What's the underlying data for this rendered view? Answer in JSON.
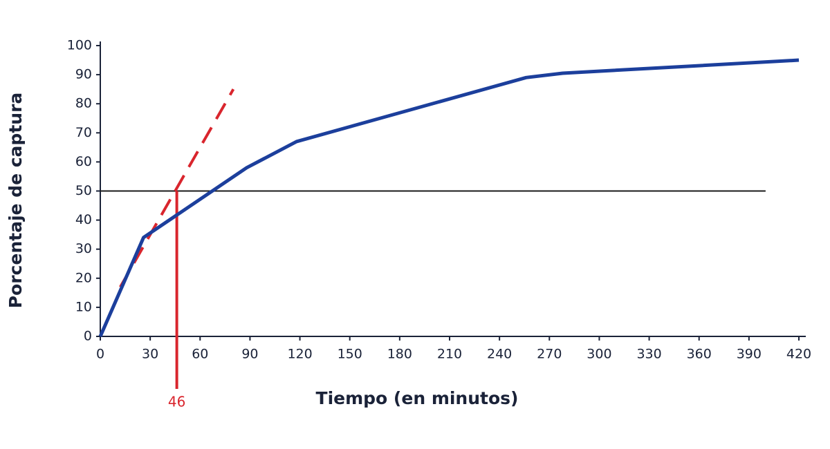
{
  "chart_data": {
    "type": "line",
    "x_label": "Tiempo (en minutos)",
    "y_label": "Porcentaje de captura",
    "x": [
      0,
      26,
      88,
      118,
      256,
      278,
      420
    ],
    "series": [
      {
        "color": "#1c3f9c",
        "values": [
          0,
          34,
          58,
          67,
          89,
          90.5,
          95
        ]
      }
    ],
    "xlim": [
      0,
      420
    ],
    "ylim": [
      0,
      100
    ],
    "xticks": [
      0,
      30,
      60,
      90,
      120,
      150,
      180,
      210,
      240,
      270,
      300,
      330,
      360,
      390,
      420
    ],
    "yticks": [
      0,
      10,
      20,
      30,
      40,
      50,
      60,
      70,
      80,
      90,
      100
    ],
    "reference_line": {
      "y": 50,
      "x": [
        0,
        400
      ],
      "color": "#1a1a1a"
    },
    "tangent": {
      "x": [
        12,
        80
      ],
      "y": [
        17,
        85
      ],
      "color": "#d9252d",
      "dashed": true
    },
    "annotations": [
      {
        "x": 46,
        "color": "#d9252d"
      }
    ]
  }
}
